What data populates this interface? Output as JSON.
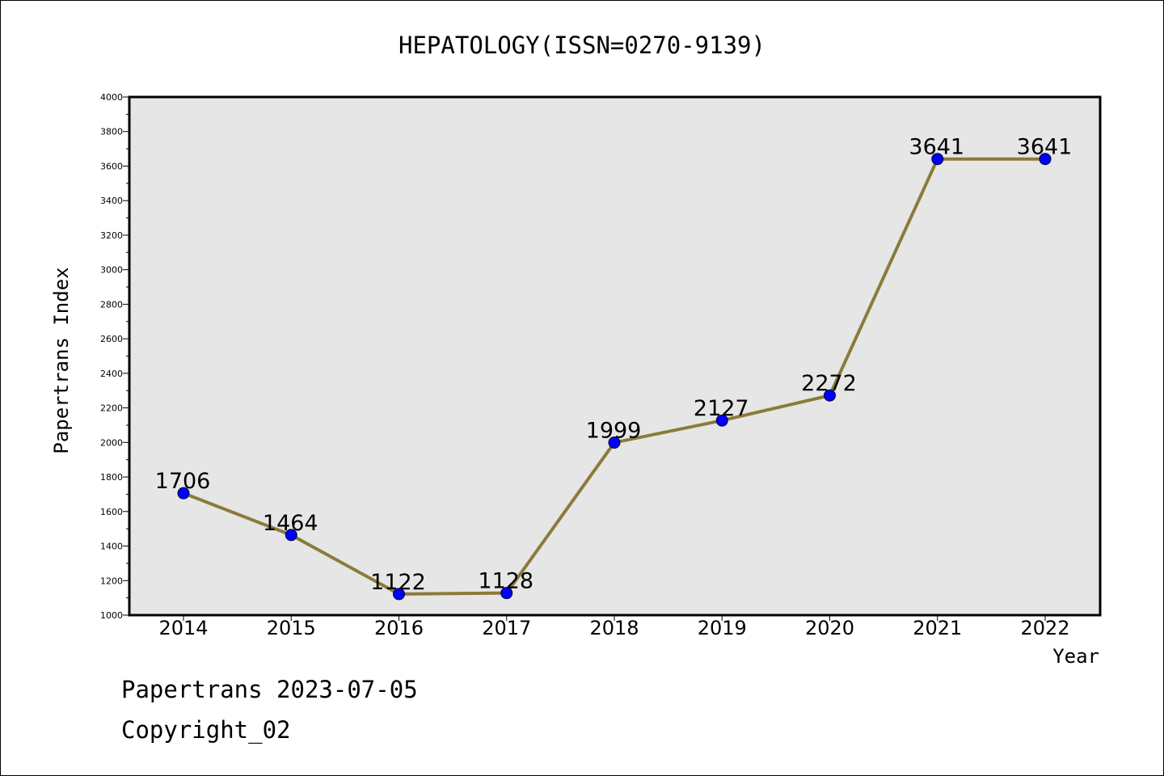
{
  "chart_data": {
    "type": "line",
    "title": "HEPATOLOGY(ISSN=0270-9139)",
    "xlabel": "Year",
    "ylabel": "Papertrans Index",
    "categories": [
      "2014",
      "2015",
      "2016",
      "2017",
      "2018",
      "2019",
      "2020",
      "2021",
      "2022"
    ],
    "series": [
      {
        "values": [
          1706,
          1464,
          1122,
          1128,
          1999,
          2127,
          2272,
          3641,
          3641
        ]
      }
    ],
    "data_labels": [
      "1706",
      "1464",
      "1122",
      "1128",
      "1999",
      "2127",
      "2272",
      "3641",
      "3641"
    ],
    "ylim": [
      1000,
      4000
    ],
    "y_ticks": [
      1000,
      1200,
      1400,
      1600,
      1800,
      2000,
      2200,
      2400,
      2600,
      2800,
      3000,
      3200,
      3400,
      3600,
      3800,
      4000
    ],
    "grid": false,
    "colors": {
      "line": "#8b7b3a",
      "marker": "#0000ff",
      "plot_background": "#e6e6e6"
    }
  },
  "footer": {
    "line1": "Papertrans 2023-07-05",
    "line2": "Copyright_02"
  }
}
